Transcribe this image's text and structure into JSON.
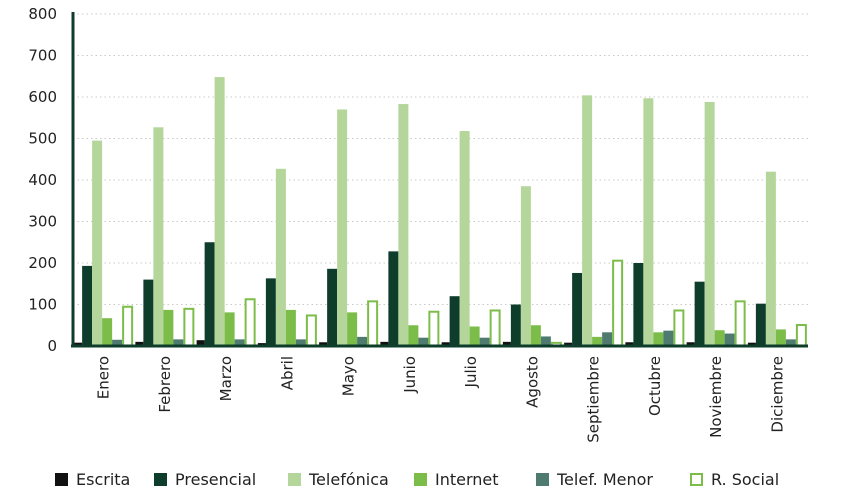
{
  "chart_data": {
    "type": "bar",
    "title": "",
    "xlabel": "",
    "ylabel": "",
    "ylim": [
      0,
      800
    ],
    "yticks": [
      0,
      100,
      200,
      300,
      400,
      500,
      600,
      700,
      800
    ],
    "grid": true,
    "legend_position": "bottom",
    "categories": [
      "Enero",
      "Febrero",
      "Marzo",
      "Abril",
      "Mayo",
      "Junio",
      "Julio",
      "Agosto",
      "Septiembre",
      "Octubre",
      "Noviembre",
      "Diciembre"
    ],
    "series": [
      {
        "name": "Escrita",
        "color": "#111111",
        "style": "filled",
        "values": [
          8,
          10,
          14,
          7,
          9,
          10,
          9,
          10,
          8,
          9,
          9,
          8
        ]
      },
      {
        "name": "Presencial",
        "color": "#0f3d2b",
        "style": "filled",
        "values": [
          193,
          160,
          250,
          163,
          186,
          228,
          120,
          100,
          176,
          200,
          155,
          102
        ]
      },
      {
        "name": "Telefónica",
        "color": "#b5d69a",
        "style": "filled",
        "values": [
          495,
          527,
          648,
          427,
          570,
          583,
          518,
          385,
          604,
          597,
          588,
          420
        ]
      },
      {
        "name": "Internet",
        "color": "#7cbd4a",
        "style": "filled",
        "values": [
          67,
          87,
          81,
          87,
          81,
          50,
          47,
          50,
          22,
          33,
          38,
          40
        ]
      },
      {
        "name": "Telef. Menor",
        "color": "#4e7a70",
        "style": "filled",
        "values": [
          15,
          16,
          16,
          16,
          22,
          20,
          20,
          23,
          33,
          37,
          30,
          16
        ]
      },
      {
        "name": "R. Social",
        "color": "#7cbd4a",
        "style": "outline",
        "values": [
          97,
          92,
          115,
          76,
          110,
          85,
          88,
          10,
          208,
          88,
          110,
          53
        ]
      }
    ]
  }
}
